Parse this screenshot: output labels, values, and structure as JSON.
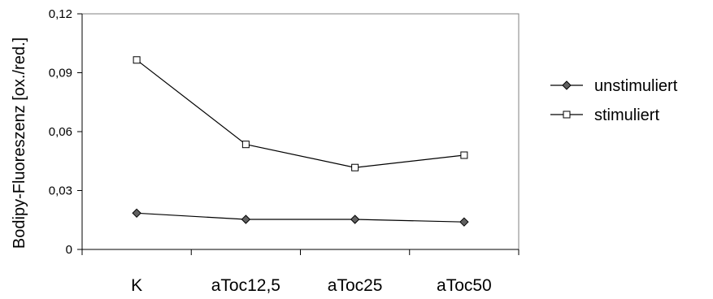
{
  "chart_data": {
    "type": "line",
    "title": "",
    "xlabel": "",
    "ylabel": "Bodipy-Fluoreszenz [ox./red.]",
    "categories": [
      "K",
      "aToc12,5",
      "aToc25",
      "aToc50"
    ],
    "ylim": [
      0,
      0.12
    ],
    "yticks": [
      0,
      0.03,
      0.06,
      0.09,
      0.12
    ],
    "ytick_labels": [
      "0",
      "0,03",
      "0,06",
      "0,09",
      "0,12"
    ],
    "grid": false,
    "legend_position": "right",
    "series": [
      {
        "name": "unstimuliert",
        "values": [
          0.0185,
          0.0153,
          0.0153,
          0.014
        ],
        "marker": "filled-diamond",
        "color": "#000000",
        "marker_fill": "#606060"
      },
      {
        "name": "stimuliert",
        "values": [
          0.0965,
          0.0535,
          0.0417,
          0.048
        ],
        "marker": "open-square",
        "color": "#000000",
        "marker_fill": "#ffffff"
      }
    ]
  }
}
